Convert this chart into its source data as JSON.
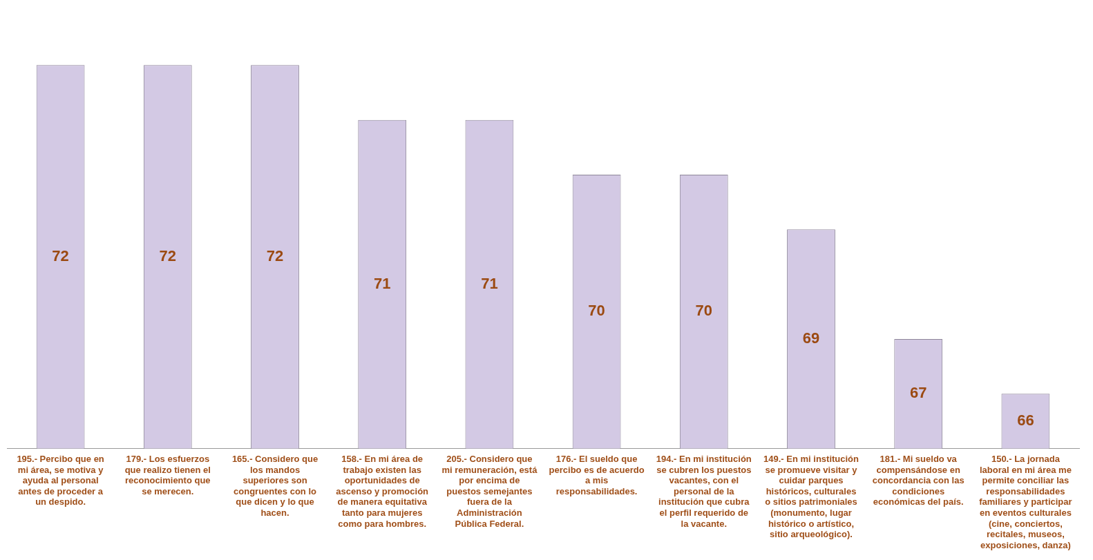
{
  "chart_data": {
    "type": "bar",
    "categories": [
      "195.- Percibo que en mi área, se motiva y ayuda al personal antes de proceder a un despido.",
      "179.- Los esfuerzos que realizo tienen el reconocimiento que se merecen.",
      "165.- Considero que los mandos superiores son congruentes con lo que dicen y lo que hacen.",
      "158.- En mi área de trabajo existen las oportunidades de ascenso y promoción de manera equitativa tanto para mujeres como para hombres.",
      "205.- Considero que mi remuneración, está por encima de puestos semejantes fuera de la Administración Pública Federal.",
      "176.- El sueldo que percibo es de acuerdo a mis responsabilidades.",
      "194.- En mi institución se cubren los puestos vacantes, con el personal de la institución que cubra el perfil requerido de la vacante.",
      "149.- En mi institución se promueve visitar y cuidar parques históricos, culturales o sitios patrimoniales (monumento, lugar histórico o artístico, sitio arqueológico).",
      "181.- Mi sueldo va compensándose en concordancia con las condiciones económicas del país.",
      "150.- La jornada laboral en mi área me permite conciliar las responsabilidades familiares y participar en eventos culturales (cine, conciertos, recitales, museos, exposiciones, danza)"
    ],
    "values": [
      72,
      72,
      72,
      71,
      71,
      70,
      70,
      69,
      67,
      66
    ],
    "color": "#d3c9e4",
    "data_labels": true,
    "tick_labels": "x",
    "grid": false,
    "legend": false
  }
}
